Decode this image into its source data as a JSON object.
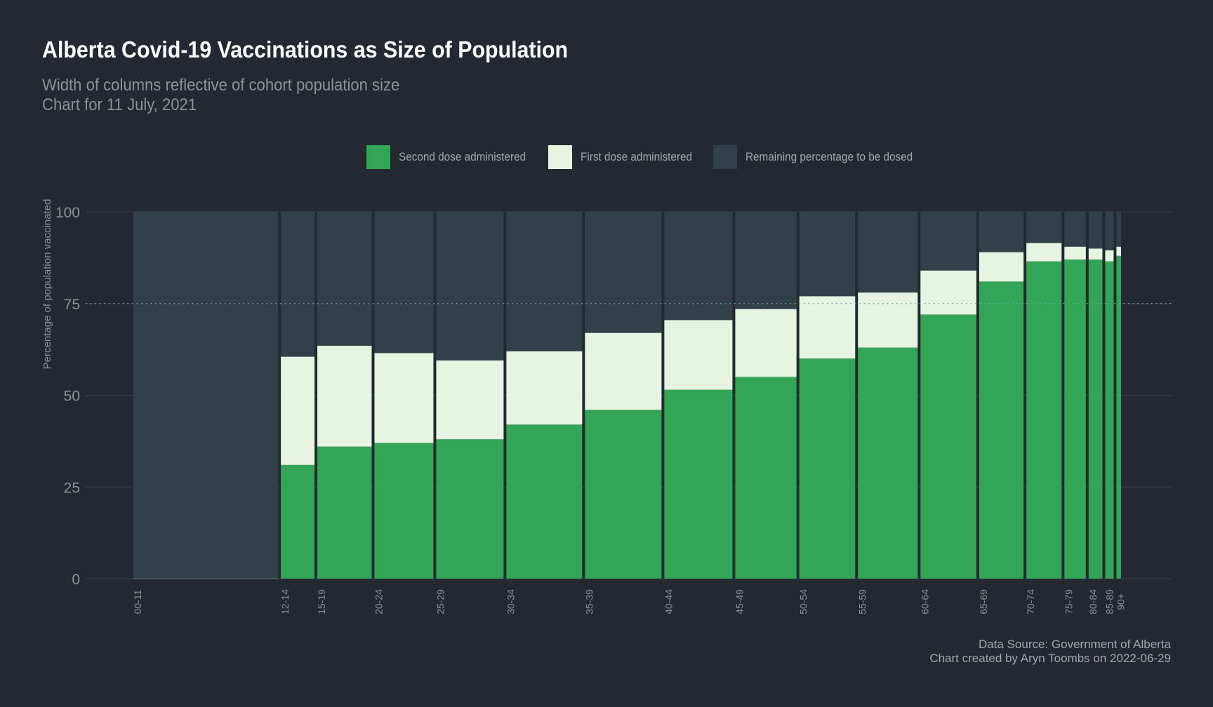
{
  "title": "Alberta Covid-19 Vaccinations as Size of Population",
  "subtitle_line1": "Width of columns reflective of cohort population size",
  "subtitle_line2": "Chart for 11 July, 2021",
  "legend": [
    {
      "label": "Second dose administered",
      "color": "#33a557"
    },
    {
      "label": "First dose administered",
      "color": "#e6f4e1"
    },
    {
      "label": "Remaining percentage to be dosed",
      "color": "#33404a"
    }
  ],
  "caption_line1": "Data Source: Government of Alberta",
  "caption_line2": "Chart created by Aryn Toombs on 2022-06-29",
  "colors": {
    "background": "#242830",
    "second_dose": "#33a557",
    "first_dose": "#e6f4e1",
    "remaining": "#33404a",
    "grid": "#3a3f47",
    "reference_line": "#6fa8a0",
    "axis_text": "#8d9297"
  },
  "chart_data": {
    "type": "bar",
    "ylabel": "Percentage of population vaccinated",
    "ylim": [
      0,
      100
    ],
    "yticks": [
      0,
      25,
      50,
      75,
      100
    ],
    "reference_line": 75,
    "categories": [
      "00-11",
      "12-14",
      "15-19",
      "20-24",
      "25-29",
      "30-34",
      "35-39",
      "40-44",
      "45-49",
      "50-54",
      "55-59",
      "60-64",
      "65-69",
      "70-74",
      "75-79",
      "80-84",
      "85-89",
      "90+"
    ],
    "relative_population": [
      189,
      44,
      71,
      77,
      88,
      99,
      100,
      89,
      80,
      73,
      78,
      73,
      58,
      46,
      28,
      18,
      11,
      6
    ],
    "series": [
      {
        "name": "Second dose administered",
        "values": [
          0,
          31,
          36,
          37,
          38,
          42,
          46,
          51.5,
          55,
          60,
          63,
          72,
          81,
          86.5,
          87,
          87,
          86.5,
          88
        ]
      },
      {
        "name": "First dose administered",
        "values": [
          0,
          29.5,
          27.5,
          24.5,
          21.5,
          20,
          21,
          19,
          18.5,
          17,
          15,
          12,
          8,
          5,
          3.5,
          3,
          3,
          2.5
        ]
      },
      {
        "name": "Remaining percentage to be dosed",
        "values": [
          100,
          39.5,
          36.5,
          38.5,
          40.5,
          38,
          33,
          29.5,
          26.5,
          23,
          22,
          16,
          11,
          8.5,
          9.5,
          10,
          10.5,
          9.5
        ]
      }
    ]
  }
}
